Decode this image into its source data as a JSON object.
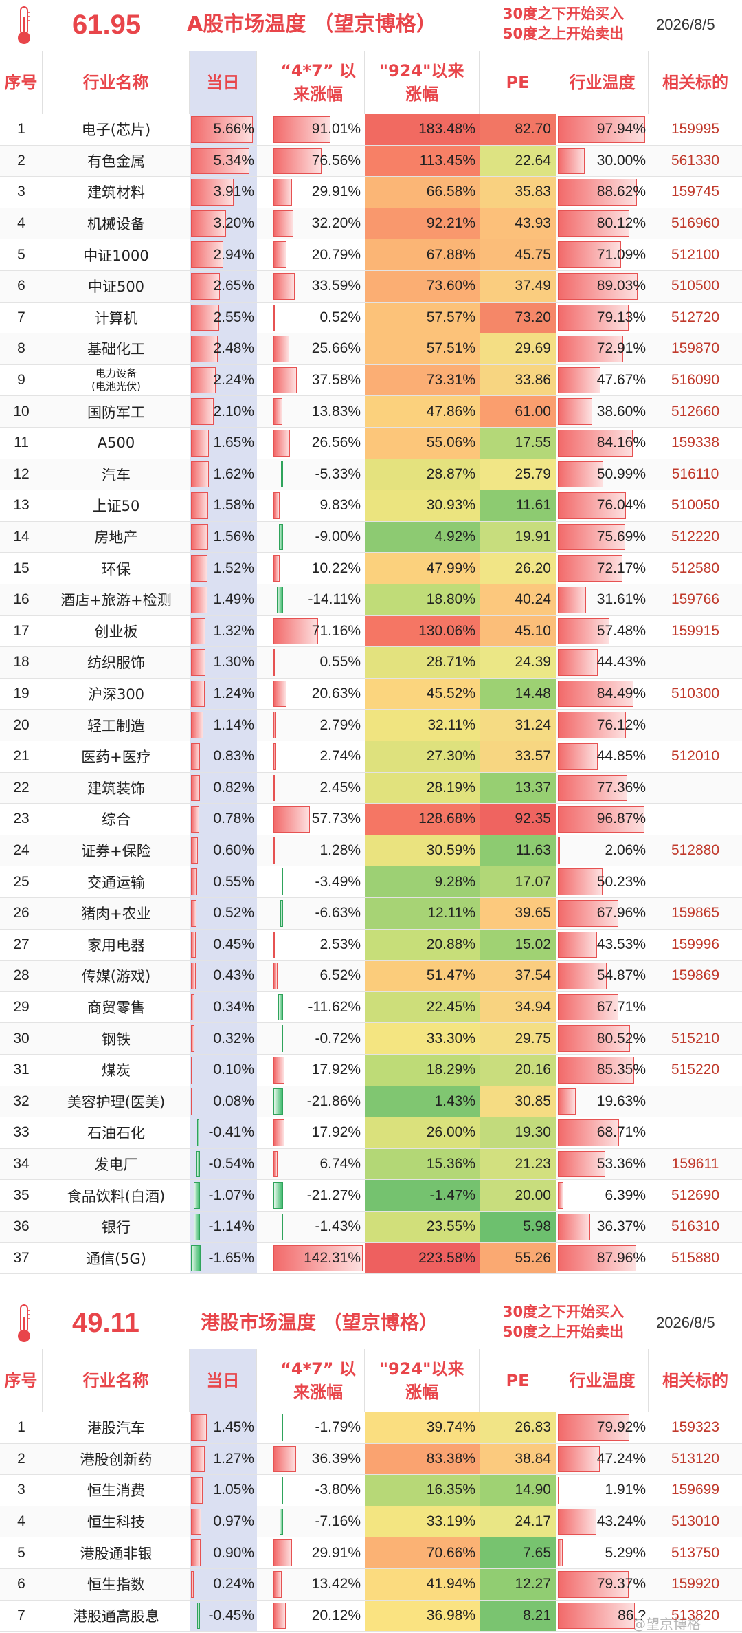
{
  "a_share": {
    "temperature": "61.95",
    "title": "A股市场温度 （望京博格）",
    "rule_line1": "30度之下开始买入",
    "rule_line2": "50度之上开始卖出",
    "date": "2026/8/5",
    "headers": {
      "num": "序号",
      "name": "行业名称",
      "day": "当日",
      "r47": "“4*7” 以来涨幅",
      "r924": "\"924\"以来涨幅",
      "pe": "PE",
      "heat": "行业温度",
      "ticker": "相关标的"
    },
    "rows": [
      {
        "num": "1",
        "name": "电子(芯片)",
        "day": "5.66%",
        "r47": "91.01%",
        "r924": "183.48%",
        "pe": "82.70",
        "heat": "97.94%",
        "ticker": "159995"
      },
      {
        "num": "2",
        "name": "有色金属",
        "day": "5.34%",
        "r47": "76.56%",
        "r924": "113.45%",
        "pe": "22.64",
        "heat": "30.00%",
        "ticker": "561330"
      },
      {
        "num": "3",
        "name": "建筑材料",
        "day": "3.91%",
        "r47": "29.91%",
        "r924": "66.58%",
        "pe": "35.83",
        "heat": "88.62%",
        "ticker": "159745"
      },
      {
        "num": "4",
        "name": "机械设备",
        "day": "3.20%",
        "r47": "32.20%",
        "r924": "92.21%",
        "pe": "43.93",
        "heat": "80.12%",
        "ticker": "516960"
      },
      {
        "num": "5",
        "name": "中证1000",
        "day": "2.94%",
        "r47": "20.79%",
        "r924": "67.88%",
        "pe": "45.75",
        "heat": "71.09%",
        "ticker": "512100"
      },
      {
        "num": "6",
        "name": "中证500",
        "day": "2.65%",
        "r47": "33.59%",
        "r924": "73.60%",
        "pe": "37.49",
        "heat": "89.03%",
        "ticker": "510500"
      },
      {
        "num": "7",
        "name": "计算机",
        "day": "2.55%",
        "r47": "0.52%",
        "r924": "57.57%",
        "pe": "73.20",
        "heat": "79.13%",
        "ticker": "512720"
      },
      {
        "num": "8",
        "name": "基础化工",
        "day": "2.48%",
        "r47": "25.66%",
        "r924": "57.51%",
        "pe": "29.69",
        "heat": "72.91%",
        "ticker": "159870"
      },
      {
        "num": "9",
        "name": "电力设备",
        "name2": "(电池光伏)",
        "day": "2.24%",
        "r47": "37.58%",
        "r924": "73.31%",
        "pe": "33.86",
        "heat": "47.67%",
        "ticker": "516090"
      },
      {
        "num": "10",
        "name": "国防军工",
        "day": "2.10%",
        "r47": "13.83%",
        "r924": "47.86%",
        "pe": "61.00",
        "heat": "38.60%",
        "ticker": "512660"
      },
      {
        "num": "11",
        "name": "A500",
        "day": "1.65%",
        "r47": "26.56%",
        "r924": "55.06%",
        "pe": "17.55",
        "heat": "84.16%",
        "ticker": "159338"
      },
      {
        "num": "12",
        "name": "汽车",
        "day": "1.62%",
        "r47": "-5.33%",
        "r924": "28.87%",
        "pe": "25.79",
        "heat": "50.99%",
        "ticker": "516110"
      },
      {
        "num": "13",
        "name": "上证50",
        "day": "1.58%",
        "r47": "9.83%",
        "r924": "30.93%",
        "pe": "11.61",
        "heat": "76.04%",
        "ticker": "510050"
      },
      {
        "num": "14",
        "name": "房地产",
        "day": "1.56%",
        "r47": "-9.00%",
        "r924": "4.92%",
        "pe": "19.91",
        "heat": "75.69%",
        "ticker": "512220"
      },
      {
        "num": "15",
        "name": "环保",
        "day": "1.52%",
        "r47": "10.22%",
        "r924": "47.99%",
        "pe": "26.20",
        "heat": "72.17%",
        "ticker": "512580"
      },
      {
        "num": "16",
        "name": "酒店+旅游+检测",
        "day": "1.49%",
        "r47": "-14.11%",
        "r924": "18.80%",
        "pe": "40.24",
        "heat": "31.61%",
        "ticker": "159766"
      },
      {
        "num": "17",
        "name": "创业板",
        "day": "1.32%",
        "r47": "71.16%",
        "r924": "130.06%",
        "pe": "45.10",
        "heat": "57.48%",
        "ticker": "159915"
      },
      {
        "num": "18",
        "name": "纺织服饰",
        "day": "1.30%",
        "r47": "0.55%",
        "r924": "28.71%",
        "pe": "24.39",
        "heat": "44.43%",
        "ticker": ""
      },
      {
        "num": "19",
        "name": "沪深300",
        "day": "1.24%",
        "r47": "20.63%",
        "r924": "45.52%",
        "pe": "14.48",
        "heat": "84.49%",
        "ticker": "510300"
      },
      {
        "num": "20",
        "name": "轻工制造",
        "day": "1.14%",
        "r47": "2.79%",
        "r924": "32.11%",
        "pe": "31.24",
        "heat": "76.12%",
        "ticker": ""
      },
      {
        "num": "21",
        "name": "医药+医疗",
        "day": "0.83%",
        "r47": "2.74%",
        "r924": "27.30%",
        "pe": "33.57",
        "heat": "44.85%",
        "ticker": "512010"
      },
      {
        "num": "22",
        "name": "建筑装饰",
        "day": "0.82%",
        "r47": "2.45%",
        "r924": "28.19%",
        "pe": "13.37",
        "heat": "77.36%",
        "ticker": ""
      },
      {
        "num": "23",
        "name": "综合",
        "day": "0.78%",
        "r47": "57.73%",
        "r924": "128.68%",
        "pe": "92.35",
        "heat": "96.87%",
        "ticker": ""
      },
      {
        "num": "24",
        "name": "证券+保险",
        "day": "0.60%",
        "r47": "1.28%",
        "r924": "30.59%",
        "pe": "11.63",
        "heat": "2.06%",
        "ticker": "512880"
      },
      {
        "num": "25",
        "name": "交通运输",
        "day": "0.55%",
        "r47": "-3.49%",
        "r924": "9.28%",
        "pe": "17.07",
        "heat": "50.23%",
        "ticker": ""
      },
      {
        "num": "26",
        "name": "猪肉+农业",
        "day": "0.52%",
        "r47": "-6.63%",
        "r924": "12.11%",
        "pe": "39.65",
        "heat": "67.96%",
        "ticker": "159865"
      },
      {
        "num": "27",
        "name": "家用电器",
        "day": "0.45%",
        "r47": "2.53%",
        "r924": "20.88%",
        "pe": "15.02",
        "heat": "43.53%",
        "ticker": "159996"
      },
      {
        "num": "28",
        "name": "传媒(游戏)",
        "day": "0.43%",
        "r47": "6.52%",
        "r924": "51.47%",
        "pe": "37.54",
        "heat": "54.87%",
        "ticker": "159869"
      },
      {
        "num": "29",
        "name": "商贸零售",
        "day": "0.34%",
        "r47": "-11.62%",
        "r924": "22.45%",
        "pe": "34.94",
        "heat": "67.71%",
        "ticker": ""
      },
      {
        "num": "30",
        "name": "钢铁",
        "day": "0.32%",
        "r47": "-0.72%",
        "r924": "33.30%",
        "pe": "29.75",
        "heat": "80.52%",
        "ticker": "515210"
      },
      {
        "num": "31",
        "name": "煤炭",
        "day": "0.10%",
        "r47": "17.92%",
        "r924": "18.29%",
        "pe": "20.16",
        "heat": "85.35%",
        "ticker": "515220"
      },
      {
        "num": "32",
        "name": "美容护理(医美)",
        "day": "0.08%",
        "r47": "-21.86%",
        "r924": "1.43%",
        "pe": "30.85",
        "heat": "19.63%",
        "ticker": ""
      },
      {
        "num": "33",
        "name": "石油石化",
        "day": "-0.41%",
        "r47": "17.92%",
        "r924": "26.00%",
        "pe": "19.30",
        "heat": "68.71%",
        "ticker": ""
      },
      {
        "num": "34",
        "name": "发电厂",
        "day": "-0.54%",
        "r47": "6.74%",
        "r924": "15.36%",
        "pe": "21.23",
        "heat": "53.36%",
        "ticker": "159611"
      },
      {
        "num": "35",
        "name": "食品饮料(白酒)",
        "day": "-1.07%",
        "r47": "-21.27%",
        "r924": "-1.47%",
        "pe": "20.00",
        "heat": "6.39%",
        "ticker": "512690"
      },
      {
        "num": "36",
        "name": "银行",
        "day": "-1.14%",
        "r47": "-1.43%",
        "r924": "23.55%",
        "pe": "5.98",
        "heat": "36.37%",
        "ticker": "516310"
      },
      {
        "num": "37",
        "name": "通信(5G)",
        "day": "-1.65%",
        "r47": "142.31%",
        "r924": "223.58%",
        "pe": "55.26",
        "heat": "87.96%",
        "ticker": "515880"
      }
    ]
  },
  "hk_share": {
    "temperature": "49.11",
    "title": "港股市场温度 （望京博格）",
    "rule_line1": "30度之下开始买入",
    "rule_line2": "50度之上开始卖出",
    "date": "2026/8/5",
    "headers": {
      "num": "序号",
      "name": "行业名称",
      "day": "当日",
      "r47": "“4*7” 以来涨幅",
      "r924": "\"924\"以来涨幅",
      "pe": "PE",
      "heat": "行业温度",
      "ticker": "相关标的"
    },
    "rows": [
      {
        "num": "1",
        "name": "港股汽车",
        "day": "1.45%",
        "r47": "-1.79%",
        "r924": "39.74%",
        "pe": "26.83",
        "heat": "79.92%",
        "ticker": "159323"
      },
      {
        "num": "2",
        "name": "港股创新药",
        "day": "1.27%",
        "r47": "36.39%",
        "r924": "83.38%",
        "pe": "38.84",
        "heat": "47.24%",
        "ticker": "513120"
      },
      {
        "num": "3",
        "name": "恒生消费",
        "day": "1.05%",
        "r47": "-3.80%",
        "r924": "16.35%",
        "pe": "14.90",
        "heat": "1.91%",
        "ticker": "159699"
      },
      {
        "num": "4",
        "name": "恒生科技",
        "day": "0.97%",
        "r47": "-7.16%",
        "r924": "33.19%",
        "pe": "24.17",
        "heat": "43.24%",
        "ticker": "513010"
      },
      {
        "num": "5",
        "name": "港股通非银",
        "day": "0.90%",
        "r47": "29.91%",
        "r924": "70.66%",
        "pe": "7.65",
        "heat": "5.29%",
        "ticker": "513750"
      },
      {
        "num": "6",
        "name": "恒生指数",
        "day": "0.24%",
        "r47": "13.42%",
        "r924": "41.94%",
        "pe": "12.27",
        "heat": "79.37%",
        "ticker": "159920"
      },
      {
        "num": "7",
        "name": "港股通高股息",
        "day": "-0.45%",
        "r47": "20.12%",
        "r924": "36.98%",
        "pe": "8.21",
        "heat": "86.?",
        "ticker": "513820"
      }
    ]
  },
  "watermark": "@望京博格",
  "colors": {
    "accent": "#e8454a",
    "ticker": "#c0392b",
    "day_col_bg": "#dbe0f2"
  }
}
